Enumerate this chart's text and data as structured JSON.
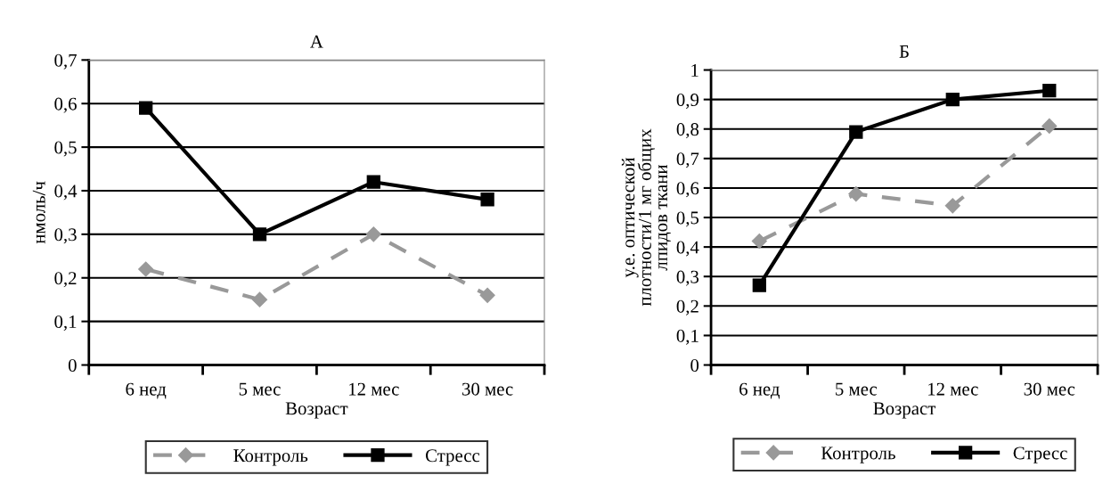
{
  "chart_data": [
    {
      "type": "line",
      "title": "А",
      "xlabel": "Возраст",
      "ylabel": "нмоль/ч",
      "categories": [
        "6 нед",
        "5 мес",
        "12 мес",
        "30 мес"
      ],
      "series": [
        {
          "name": "Контроль",
          "color": "#999999",
          "values": [
            0.22,
            0.15,
            0.3,
            0.16
          ],
          "marker": "diamond",
          "line_style": "dashed"
        },
        {
          "name": "Стресс",
          "color": "#000000",
          "values": [
            0.59,
            0.3,
            0.42,
            0.38
          ],
          "marker": "square",
          "line_style": "solid"
        }
      ],
      "ylim": [
        0,
        0.7
      ],
      "yticks": [
        0,
        {
          "value": 0.1,
          "label": "0,1"
        },
        {
          "value": 0.2,
          "label": "0,2"
        },
        {
          "value": 0.3,
          "label": "0,3"
        },
        {
          "value": 0.4,
          "label": "0,4"
        },
        {
          "value": 0.5,
          "label": "0,5"
        },
        {
          "value": 0.6,
          "label": "0,6"
        },
        {
          "value": 0.7,
          "label": "0,7"
        }
      ],
      "grid": "y",
      "legend": "bottom"
    },
    {
      "type": "line",
      "title": "Б",
      "xlabel": "Возраст",
      "ylabel": "у.е. оптической\nплотности/1 мг общих\nлпидов ткани",
      "categories": [
        "6 нед",
        "5 мес",
        "12 мес",
        "30 мес"
      ],
      "series": [
        {
          "name": "Контроль",
          "color": "#999999",
          "values": [
            0.42,
            0.58,
            0.54,
            0.81
          ],
          "marker": "diamond",
          "line_style": "dashed"
        },
        {
          "name": "Стресс",
          "color": "#000000",
          "values": [
            0.27,
            0.79,
            0.9,
            0.93
          ],
          "marker": "square",
          "line_style": "solid"
        }
      ],
      "ylim": [
        0,
        1
      ],
      "yticks": [
        0,
        {
          "value": 0.1,
          "label": "0,1"
        },
        {
          "value": 0.2,
          "label": "0,2"
        },
        {
          "value": 0.3,
          "label": "0,3"
        },
        {
          "value": 0.4,
          "label": "0,4"
        },
        {
          "value": 0.5,
          "label": "0,5"
        },
        {
          "value": 0.6,
          "label": "0,6"
        },
        {
          "value": 0.7,
          "label": "0,7"
        },
        {
          "value": 0.8,
          "label": "0,8"
        },
        {
          "value": 0.9,
          "label": "0,9"
        },
        1
      ],
      "grid": "y",
      "legend": "bottom"
    }
  ]
}
